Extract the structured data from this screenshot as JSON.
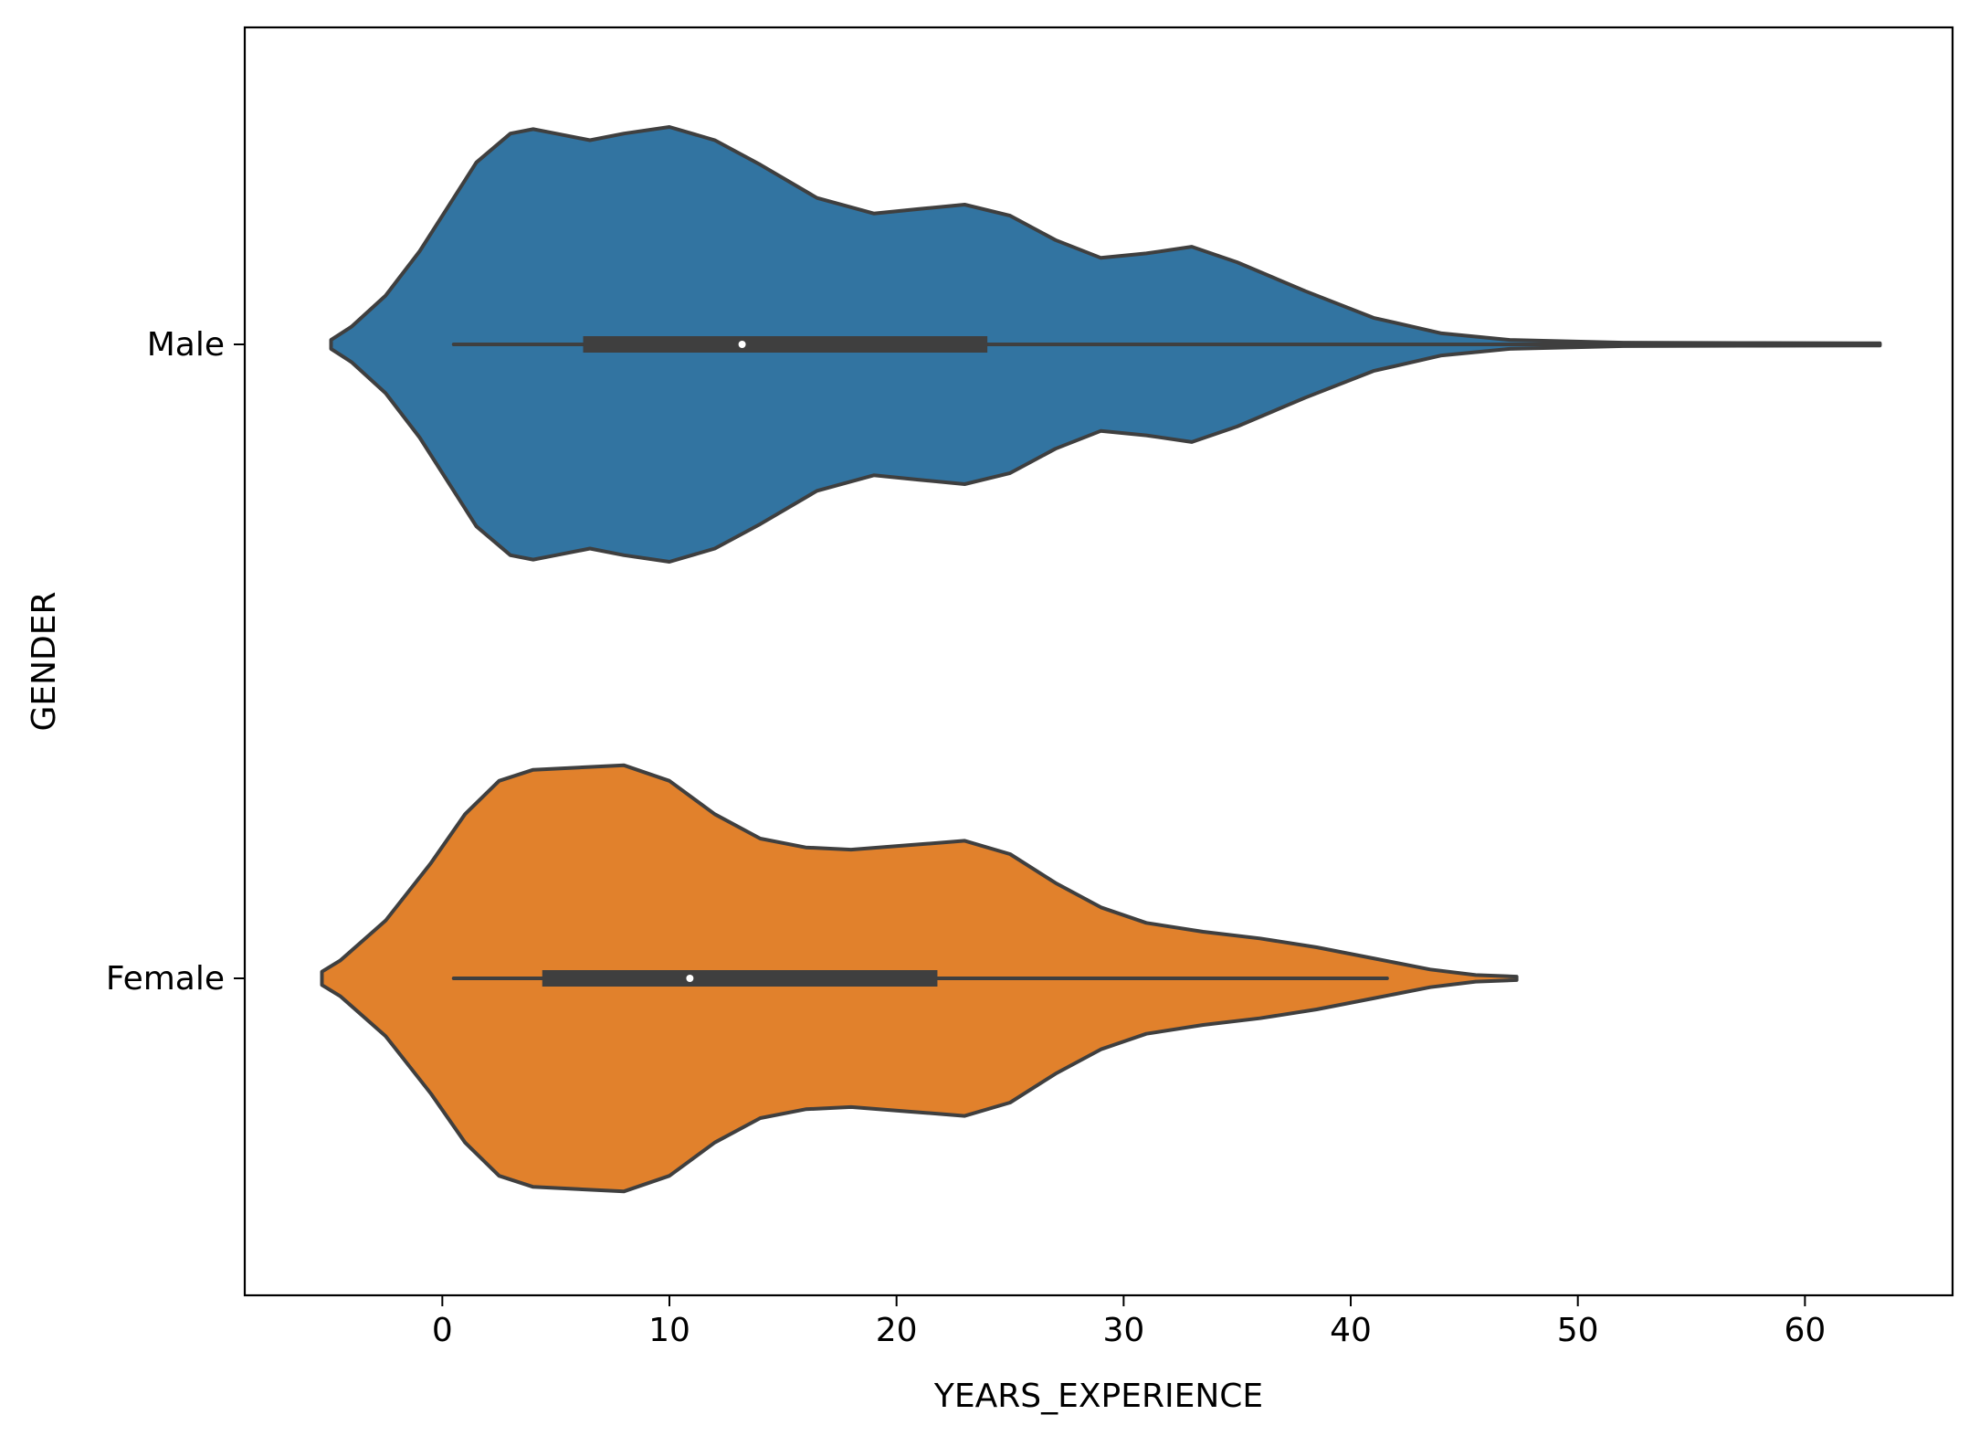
{
  "chart_data": {
    "type": "violin",
    "orientation": "horizontal",
    "xlabel": "YEARS_EXPERIENCE",
    "ylabel": "GENDER",
    "xlim": [
      -8.7,
      66.5
    ],
    "x_ticks": [
      0,
      10,
      20,
      30,
      40,
      50,
      60
    ],
    "categories": [
      "Male",
      "Female"
    ],
    "grid": false,
    "legend": "none",
    "series": [
      {
        "category": "Male",
        "color": "#3274a1",
        "min": 0.5,
        "q1": 6.2,
        "median": 13.2,
        "q3": 24.0,
        "whisker_high": 63.3,
        "kde_extent": [
          -4.9,
          63.3
        ],
        "density_profile": [
          {
            "x": -4.9,
            "w": 0.02
          },
          {
            "x": -4.0,
            "w": 0.08
          },
          {
            "x": -2.5,
            "w": 0.22
          },
          {
            "x": -1.0,
            "w": 0.42
          },
          {
            "x": 0.5,
            "w": 0.66
          },
          {
            "x": 1.5,
            "w": 0.82
          },
          {
            "x": 3.0,
            "w": 0.95
          },
          {
            "x": 4.0,
            "w": 0.97
          },
          {
            "x": 5.0,
            "w": 0.95
          },
          {
            "x": 6.5,
            "w": 0.92
          },
          {
            "x": 8.0,
            "w": 0.95
          },
          {
            "x": 10.0,
            "w": 0.98
          },
          {
            "x": 12.0,
            "w": 0.92
          },
          {
            "x": 14.0,
            "w": 0.81
          },
          {
            "x": 16.5,
            "w": 0.66
          },
          {
            "x": 19.0,
            "w": 0.59
          },
          {
            "x": 21.0,
            "w": 0.61
          },
          {
            "x": 23.0,
            "w": 0.63
          },
          {
            "x": 25.0,
            "w": 0.58
          },
          {
            "x": 27.0,
            "w": 0.47
          },
          {
            "x": 29.0,
            "w": 0.39
          },
          {
            "x": 31.0,
            "w": 0.41
          },
          {
            "x": 33.0,
            "w": 0.44
          },
          {
            "x": 35.0,
            "w": 0.37
          },
          {
            "x": 38.0,
            "w": 0.24
          },
          {
            "x": 41.0,
            "w": 0.12
          },
          {
            "x": 44.0,
            "w": 0.05
          },
          {
            "x": 47.0,
            "w": 0.02
          },
          {
            "x": 52.0,
            "w": 0.008
          },
          {
            "x": 58.0,
            "w": 0.006
          },
          {
            "x": 63.3,
            "w": 0.005
          }
        ]
      },
      {
        "category": "Female",
        "color": "#e1812c",
        "min": 0.5,
        "q1": 4.4,
        "median": 10.9,
        "q3": 21.8,
        "whisker_high": 41.6,
        "kde_extent": [
          -5.3,
          47.3
        ],
        "density_profile": [
          {
            "x": -5.3,
            "w": 0.03
          },
          {
            "x": -4.5,
            "w": 0.08
          },
          {
            "x": -2.5,
            "w": 0.26
          },
          {
            "x": -0.5,
            "w": 0.52
          },
          {
            "x": 1.0,
            "w": 0.74
          },
          {
            "x": 2.5,
            "w": 0.89
          },
          {
            "x": 4.0,
            "w": 0.94
          },
          {
            "x": 6.0,
            "w": 0.95
          },
          {
            "x": 8.0,
            "w": 0.96
          },
          {
            "x": 10.0,
            "w": 0.89
          },
          {
            "x": 12.0,
            "w": 0.74
          },
          {
            "x": 14.0,
            "w": 0.63
          },
          {
            "x": 16.0,
            "w": 0.59
          },
          {
            "x": 18.0,
            "w": 0.58
          },
          {
            "x": 20.5,
            "w": 0.6
          },
          {
            "x": 23.0,
            "w": 0.62
          },
          {
            "x": 25.0,
            "w": 0.56
          },
          {
            "x": 27.0,
            "w": 0.43
          },
          {
            "x": 29.0,
            "w": 0.32
          },
          {
            "x": 31.0,
            "w": 0.25
          },
          {
            "x": 33.5,
            "w": 0.21
          },
          {
            "x": 36.0,
            "w": 0.18
          },
          {
            "x": 38.5,
            "w": 0.14
          },
          {
            "x": 41.0,
            "w": 0.09
          },
          {
            "x": 43.5,
            "w": 0.04
          },
          {
            "x": 45.5,
            "w": 0.015
          },
          {
            "x": 47.3,
            "w": 0.008
          }
        ]
      }
    ]
  }
}
